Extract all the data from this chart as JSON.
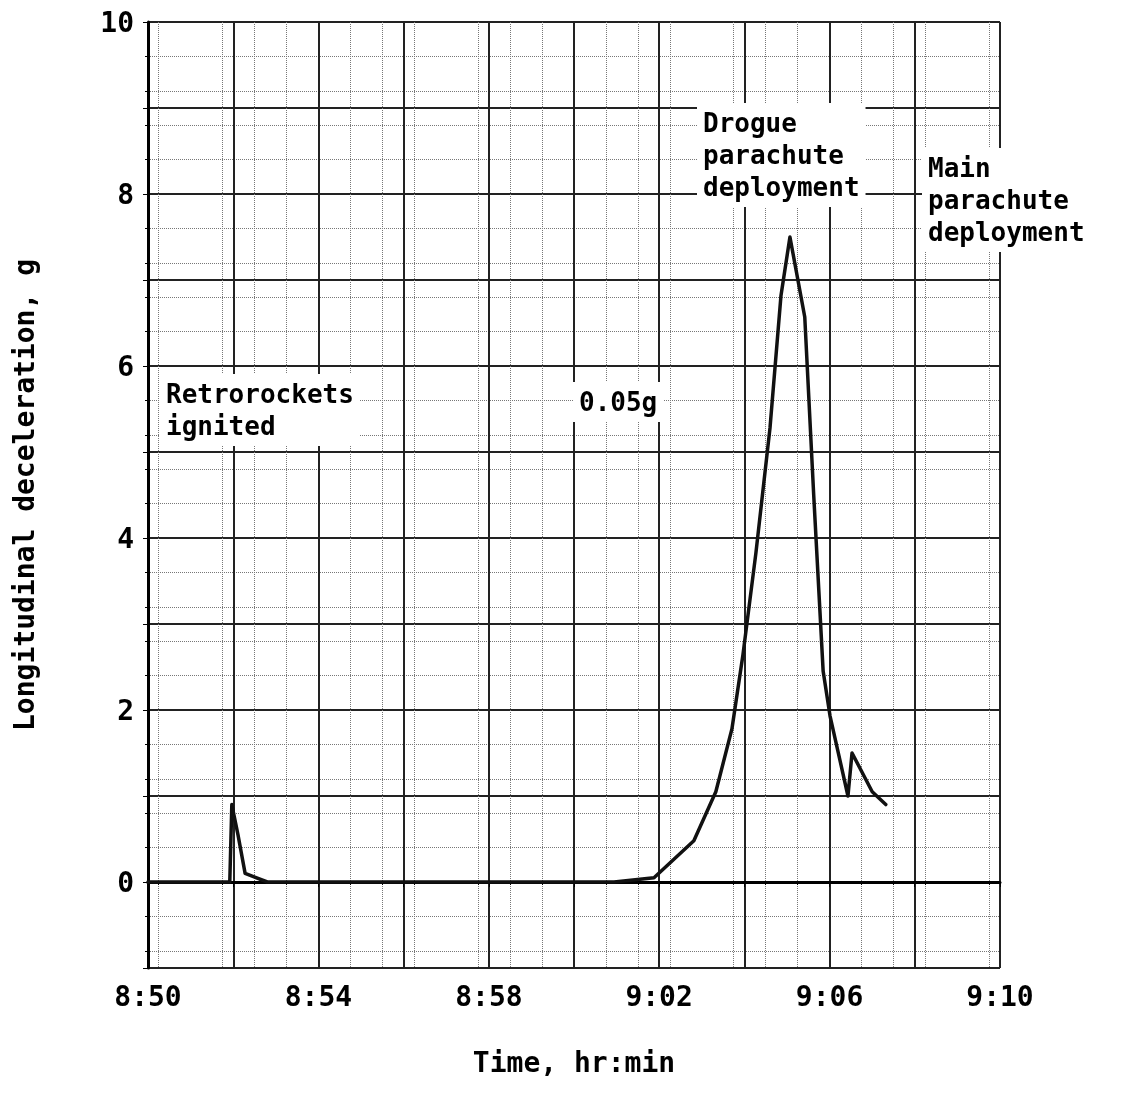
{
  "chart_data": {
    "type": "line",
    "xlabel": "Time, hr:min",
    "ylabel": "Longitudinal deceleration, g",
    "xlim": [
      8.8333,
      9.1667
    ],
    "ylim": [
      -1,
      10
    ],
    "xticks": [
      {
        "value": 8.8333,
        "label": "8:50"
      },
      {
        "value": 8.8667,
        "label": null
      },
      {
        "value": 8.9,
        "label": "8:54"
      },
      {
        "value": 8.9333,
        "label": null
      },
      {
        "value": 8.9667,
        "label": "8:58"
      },
      {
        "value": 9.0,
        "label": null
      },
      {
        "value": 9.0333,
        "label": "9:02"
      },
      {
        "value": 9.0667,
        "label": null
      },
      {
        "value": 9.1,
        "label": "9:06"
      },
      {
        "value": 9.1333,
        "label": null
      },
      {
        "value": 9.1667,
        "label": "9:10"
      }
    ],
    "yticks": [
      {
        "value": -1,
        "label": null
      },
      0,
      {
        "value": 1,
        "label": null
      },
      2,
      {
        "value": 3,
        "label": null
      },
      4,
      {
        "value": 5,
        "label": null
      },
      6,
      {
        "value": 7,
        "label": null
      },
      8,
      {
        "value": 9,
        "label": null
      },
      10
    ],
    "grid": true,
    "marker": "none",
    "line_style": "solid",
    "series": [
      {
        "color": "#111111",
        "x": [
          8.8333,
          8.8653,
          8.8661,
          8.8685,
          8.8713,
          8.88,
          9.0157,
          9.0313,
          9.0469,
          9.0555,
          9.0618,
          9.0661,
          9.0712,
          9.0767,
          9.081,
          9.0845,
          9.0903,
          9.0938,
          9.0975,
          9.1002,
          9.1072,
          9.1088,
          9.1167,
          9.122
        ],
        "values": [
          0,
          0,
          0.9,
          0.55,
          0.1,
          0,
          0,
          0.05,
          0.48,
          1.05,
          1.78,
          2.64,
          3.83,
          5.28,
          6.82,
          7.5,
          6.57,
          4.5,
          2.45,
          1.93,
          1.0,
          1.5,
          1.05,
          0.9
        ]
      }
    ],
    "annotations": [
      "Retrorockets\nignited",
      "0.05g",
      "Drogue\nparachute\ndeployment",
      "Main\nparachute\ndeployment"
    ]
  }
}
